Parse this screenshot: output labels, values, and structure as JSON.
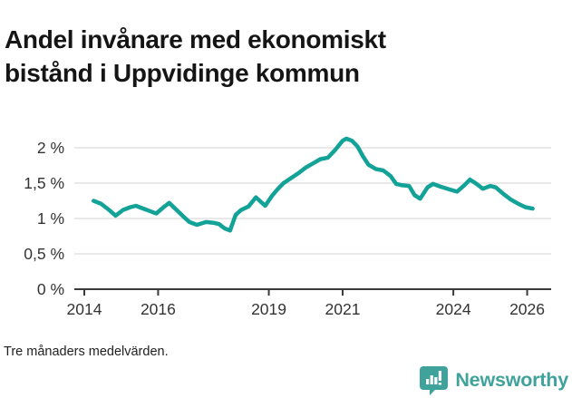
{
  "header": {
    "title_lines": [
      "Andel invånare med ekonomiskt",
      "bistånd i Uppvidinge kommun"
    ]
  },
  "footer": {
    "note": "Tre månaders medelvärden.",
    "brand": "Newsworthy",
    "logo_icon": "bar-chart-badge-icon"
  },
  "colors": {
    "line": "#12a297",
    "brand_teal": "#3fa29b",
    "grid": "#dcdcdc",
    "axis": "#3a3a3a",
    "tick_text": "#333333",
    "title_text": "#151515"
  },
  "chart_data": {
    "type": "line",
    "title": "Andel invånare med ekonomiskt bistånd i Uppvidinge kommun",
    "xlabel": "",
    "ylabel": "",
    "unit": "%",
    "grid": "horizontal-only",
    "legend": "none",
    "xlim": [
      2013.73,
      2026.65
    ],
    "ylim": [
      0,
      2.42
    ],
    "x_ticks": [
      {
        "value": 2014,
        "label": "2014"
      },
      {
        "value": 2016,
        "label": "2016"
      },
      {
        "value": 2019,
        "label": "2019"
      },
      {
        "value": 2021,
        "label": "2021"
      },
      {
        "value": 2024,
        "label": "2024"
      },
      {
        "value": 2026,
        "label": "2026"
      }
    ],
    "y_ticks": [
      {
        "value": 0,
        "label": "0 %"
      },
      {
        "value": 0.5,
        "label": "0,5 %"
      },
      {
        "value": 1,
        "label": "1 %"
      },
      {
        "value": 1.5,
        "label": "1,5 %"
      },
      {
        "value": 2,
        "label": "2 %"
      }
    ],
    "series": [
      {
        "name": "Andel invånare med ekonomiskt bistånd",
        "color": "#12a297",
        "points": [
          [
            2014.25,
            1.25
          ],
          [
            2014.45,
            1.21
          ],
          [
            2014.65,
            1.13
          ],
          [
            2014.85,
            1.04
          ],
          [
            2015.05,
            1.12
          ],
          [
            2015.25,
            1.16
          ],
          [
            2015.4,
            1.18
          ],
          [
            2015.6,
            1.14
          ],
          [
            2015.8,
            1.1
          ],
          [
            2015.95,
            1.07
          ],
          [
            2016.15,
            1.16
          ],
          [
            2016.3,
            1.22
          ],
          [
            2016.5,
            1.12
          ],
          [
            2016.7,
            1.02
          ],
          [
            2016.85,
            0.95
          ],
          [
            2017.05,
            0.91
          ],
          [
            2017.3,
            0.95
          ],
          [
            2017.5,
            0.94
          ],
          [
            2017.65,
            0.92
          ],
          [
            2017.8,
            0.86
          ],
          [
            2017.95,
            0.83
          ],
          [
            2018.1,
            1.05
          ],
          [
            2018.25,
            1.12
          ],
          [
            2018.45,
            1.17
          ],
          [
            2018.65,
            1.3
          ],
          [
            2018.9,
            1.18
          ],
          [
            2019.1,
            1.33
          ],
          [
            2019.25,
            1.42
          ],
          [
            2019.4,
            1.5
          ],
          [
            2019.6,
            1.57
          ],
          [
            2019.8,
            1.64
          ],
          [
            2020.0,
            1.72
          ],
          [
            2020.2,
            1.78
          ],
          [
            2020.4,
            1.84
          ],
          [
            2020.6,
            1.86
          ],
          [
            2020.8,
            1.97
          ],
          [
            2021.0,
            2.1
          ],
          [
            2021.1,
            2.13
          ],
          [
            2021.25,
            2.1
          ],
          [
            2021.4,
            2.02
          ],
          [
            2021.55,
            1.88
          ],
          [
            2021.7,
            1.76
          ],
          [
            2021.9,
            1.7
          ],
          [
            2022.1,
            1.68
          ],
          [
            2022.3,
            1.6
          ],
          [
            2022.45,
            1.49
          ],
          [
            2022.6,
            1.47
          ],
          [
            2022.8,
            1.46
          ],
          [
            2022.95,
            1.33
          ],
          [
            2023.1,
            1.28
          ],
          [
            2023.3,
            1.44
          ],
          [
            2023.45,
            1.49
          ],
          [
            2023.65,
            1.45
          ],
          [
            2023.9,
            1.41
          ],
          [
            2024.1,
            1.38
          ],
          [
            2024.3,
            1.47
          ],
          [
            2024.45,
            1.55
          ],
          [
            2024.6,
            1.5
          ],
          [
            2024.8,
            1.42
          ],
          [
            2025.0,
            1.46
          ],
          [
            2025.15,
            1.44
          ],
          [
            2025.35,
            1.35
          ],
          [
            2025.55,
            1.27
          ],
          [
            2025.75,
            1.21
          ],
          [
            2025.95,
            1.16
          ],
          [
            2026.15,
            1.14
          ]
        ]
      }
    ],
    "note": "Tre månaders medelvärden."
  }
}
